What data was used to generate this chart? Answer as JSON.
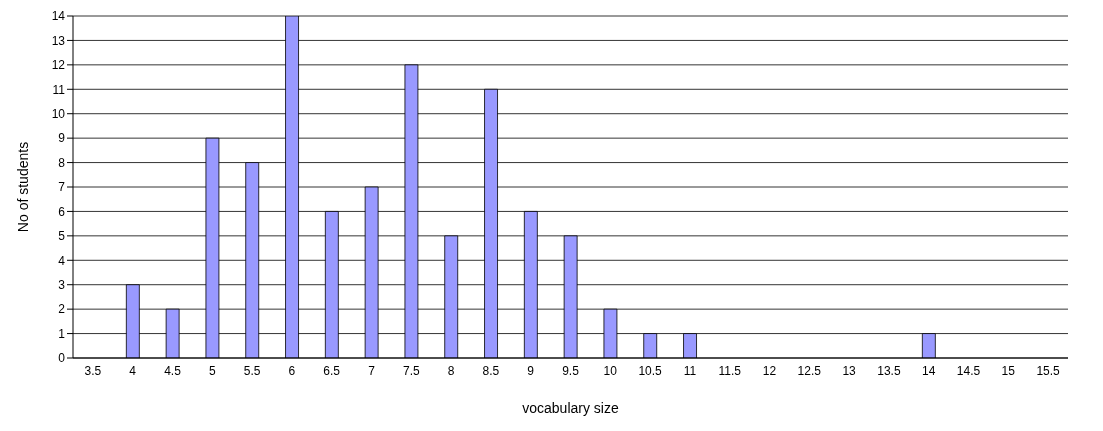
{
  "chart_data": {
    "type": "bar",
    "xlabel": "vocabulary size",
    "ylabel": "No of students",
    "categories": [
      "3.5",
      "4",
      "4.5",
      "5",
      "5.5",
      "6",
      "6.5",
      "7",
      "7.5",
      "8",
      "8.5",
      "9",
      "9.5",
      "10",
      "10.5",
      "11",
      "11.5",
      "12",
      "12.5",
      "13",
      "13.5",
      "14",
      "14.5",
      "15",
      "15.5"
    ],
    "values": [
      0,
      3,
      2,
      9,
      8,
      14,
      6,
      7,
      12,
      5,
      11,
      6,
      5,
      2,
      1,
      1,
      0,
      0,
      0,
      0,
      0,
      1,
      0,
      0,
      0
    ],
    "color": "#9999ff",
    "ylim": [
      0,
      14
    ],
    "yticks": [
      0,
      1,
      2,
      3,
      4,
      5,
      6,
      7,
      8,
      9,
      10,
      11,
      12,
      13,
      14
    ],
    "grid": "y"
  }
}
